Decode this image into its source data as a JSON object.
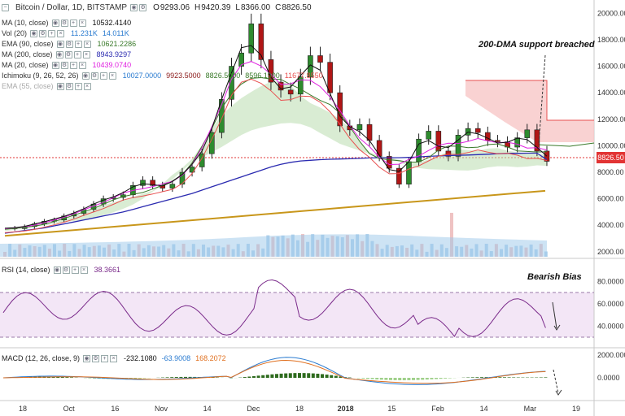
{
  "header": {
    "symbol": "Bitcoin / Dollar, 1D, BITSTAMP",
    "open_label": "O",
    "open": "9293.06",
    "high_label": "H",
    "high": "9420.39",
    "low_label": "L",
    "low": "8366.00",
    "close_label": "C",
    "close": "8826.50"
  },
  "indicators": [
    {
      "label": "MA (10, close)",
      "values": [
        "10532.4140"
      ],
      "color": "#111111"
    },
    {
      "label": "Vol (20)",
      "values": [
        "11.231K",
        "14.011K"
      ],
      "color": "#2a7bd0"
    },
    {
      "label": "EMA (90, close)",
      "values": [
        "10621.2286"
      ],
      "color": "#3a7a2a"
    },
    {
      "label": "MA (200, close)",
      "values": [
        "8943.9297"
      ],
      "color": "#2a2ab0"
    },
    {
      "label": "MA (20, close)",
      "values": [
        "10439.0740"
      ],
      "color": "#e020e0"
    },
    {
      "label": "Ichimoku (9, 26, 52, 26)",
      "values": [
        "10027.0000",
        "9923.5000",
        "8826.5000",
        "8596.1900",
        "11677.8550"
      ],
      "colors": [
        "#2a7bd0",
        "#8b1a1a",
        "#3a7a2a",
        "#3a7a2a",
        "#e85050"
      ]
    },
    {
      "label": "EMA (55, close)",
      "values": [],
      "color": "#999999"
    }
  ],
  "annotations": {
    "dma": "200-DMA support breached",
    "bias": "Bearish Bias"
  },
  "current_price": "8826.50",
  "rsi_panel": {
    "label": "RSI (14, close)",
    "value": "38.3661",
    "color": "#7a2a8a"
  },
  "macd_panel": {
    "label": "MACD (12, 26, close, 9)",
    "values": [
      "-232.1080",
      "-63.9008",
      "168.2072"
    ],
    "colors": [
      "#111111",
      "#2a7bd0",
      "#e07020"
    ]
  },
  "price_axis": [
    "20000.00",
    "18000.00",
    "16000.00",
    "14000.00",
    "12000.00",
    "10000.00",
    "8000.00",
    "6000.00",
    "4000.00",
    "2000.00"
  ],
  "rsi_axis": [
    "80.0000",
    "60.0000",
    "40.0000"
  ],
  "macd_axis": [
    "2000.0000",
    "0.0000"
  ],
  "time_axis": [
    "18",
    "Oct",
    "16",
    "Nov",
    "14",
    "Dec",
    "18",
    "2018",
    "15",
    "Feb",
    "14",
    "Mar",
    "19"
  ],
  "chart_data": {
    "type": "line",
    "title": "Bitcoin / Dollar, 1D, BITSTAMP",
    "xlabel": "",
    "ylabel": "",
    "ylim": [
      1500,
      21000
    ],
    "close": [
      3800,
      3750,
      3900,
      4100,
      4300,
      4400,
      4700,
      4900,
      5200,
      5600,
      6000,
      6100,
      6300,
      7000,
      7400,
      7000,
      6800,
      7100,
      8000,
      8400,
      9400,
      11000,
      13500,
      16000,
      17000,
      19200,
      16500,
      14800,
      14200,
      13900,
      15200,
      16800,
      16300,
      14000,
      11500,
      11200,
      11600,
      10400,
      9200,
      8300,
      7100,
      8800,
      10500,
      11100,
      9600,
      9200,
      10800,
      11300,
      11000,
      10400,
      10300,
      9900,
      10600,
      11200,
      9600,
      8826
    ],
    "ma200": [
      3400,
      3500,
      3600,
      3700,
      3800,
      3950,
      4100,
      4250,
      4400,
      4550,
      4700,
      4850,
      5000,
      5200,
      5400,
      5600,
      5800,
      6000,
      6200,
      6400,
      6650,
      6900,
      7150,
      7400,
      7650,
      7900,
      8150,
      8400,
      8600,
      8750,
      8850,
      8900,
      8950,
      8980,
      9000,
      9020,
      9050,
      9080,
      9100,
      9100,
      9100,
      9120,
      9150,
      9200,
      9230,
      9260,
      9280,
      9300,
      9330,
      9360,
      9400,
      9420,
      9430,
      9440,
      9440,
      8944
    ],
    "trendline": [
      3200,
      6600
    ]
  }
}
